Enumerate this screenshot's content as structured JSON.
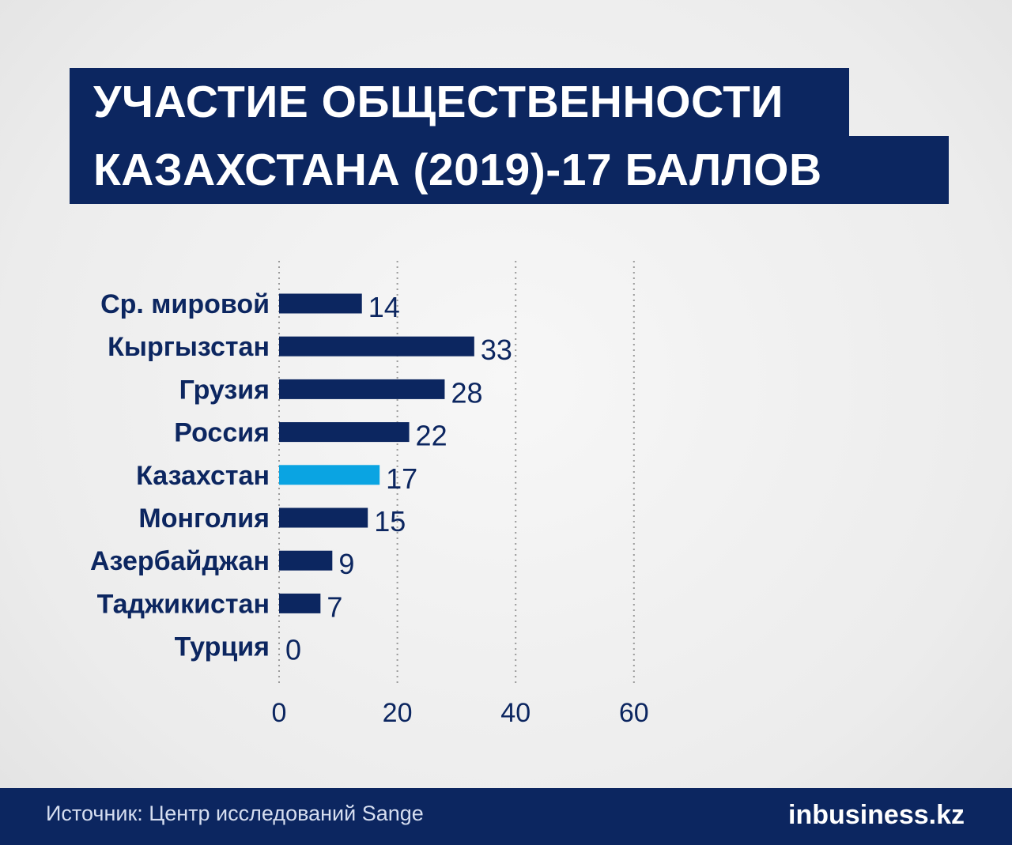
{
  "title": {
    "line1": "УЧАСТИЕ ОБЩЕСТВЕННОСТИ",
    "line2": "КАЗАХСТАНА (2019)-17 БАЛЛОВ"
  },
  "chart_data": {
    "type": "bar",
    "orientation": "horizontal",
    "categories": [
      "Ср. мировой",
      "Кыргызстан",
      "Грузия",
      "Россия",
      "Казахстан",
      "Монголия",
      "Азербайджан",
      "Таджикистан",
      "Турция"
    ],
    "values": [
      14,
      33,
      28,
      22,
      17,
      15,
      9,
      7,
      0
    ],
    "highlight": "Казахстан",
    "xlim": [
      0,
      60
    ],
    "xticks": [
      0,
      20,
      40,
      60
    ],
    "grid": true,
    "colors": {
      "bar": "#0c2660",
      "highlight": "#0aa4e2",
      "text": "#0c2660",
      "grid": "#9a9a9a"
    }
  },
  "footer": {
    "source": "Источник: Центр исследований Sange",
    "brand": "inbusiness.kz"
  }
}
